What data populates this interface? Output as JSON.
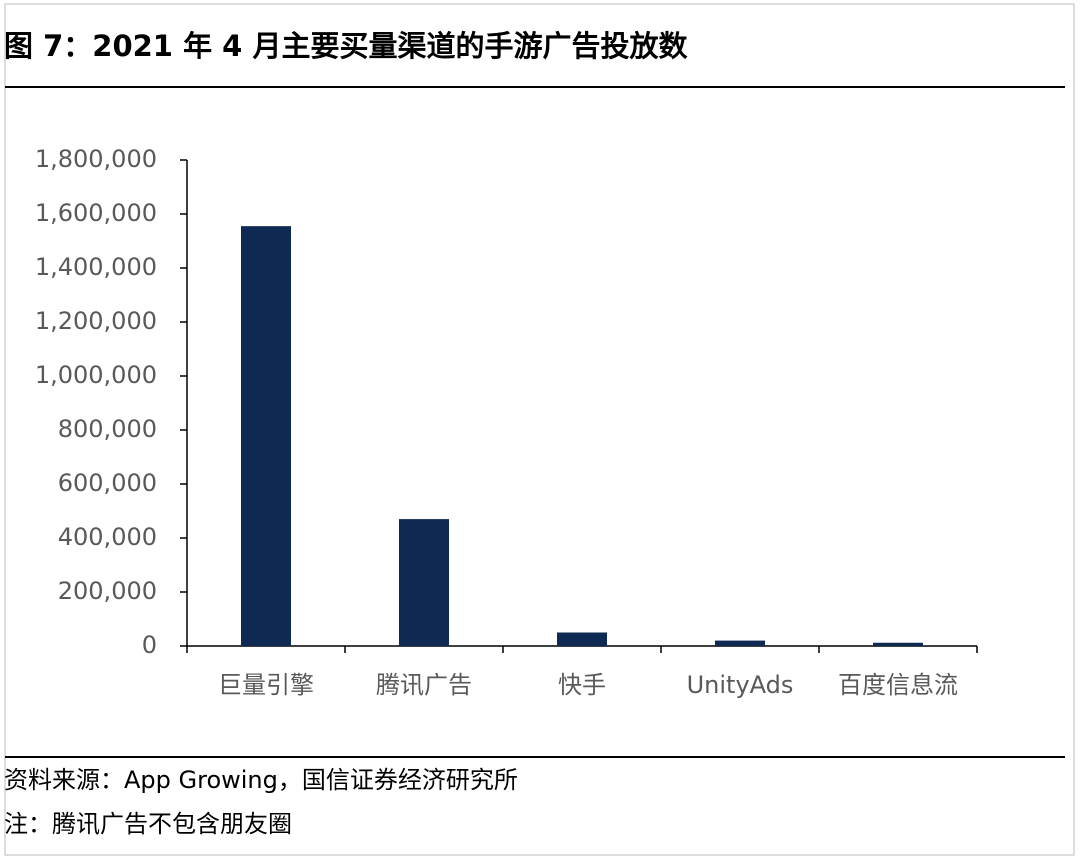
{
  "chart_data": {
    "type": "bar",
    "title": "图 7：2021 年 4 月主要买量渠道的手游广告投放数",
    "categories": [
      "巨量引擎",
      "腾讯广告",
      "快手",
      "UnityAds",
      "百度信息流"
    ],
    "values": [
      1555000,
      470000,
      50000,
      20000,
      12000
    ],
    "color": "#0f2a52",
    "ylim": [
      0,
      1800000
    ],
    "yticks": [
      0,
      {
        "value": 200000,
        "label": "200,000"
      },
      {
        "value": 400000,
        "label": "400,000"
      },
      {
        "value": 600000,
        "label": "600,000"
      },
      {
        "value": 800000,
        "label": "800,000"
      },
      {
        "value": 1000000,
        "label": "1,000,000"
      },
      {
        "value": 1200000,
        "label": "1,200,000"
      },
      {
        "value": 1400000,
        "label": "1,400,000"
      },
      {
        "value": 1600000,
        "label": "1,600,000"
      },
      {
        "value": 1800000,
        "label": "1,800,000"
      }
    ],
    "source": "资料来源：App Growing，国信证券经济研究所",
    "note": "注：腾讯广告不包含朋友圈"
  }
}
